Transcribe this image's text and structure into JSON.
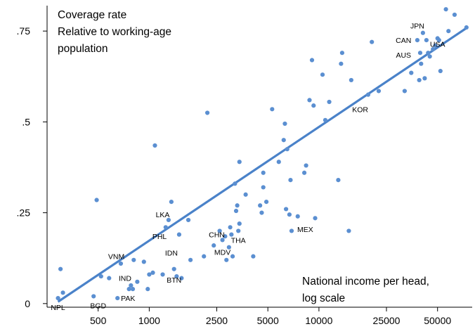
{
  "chart_data": {
    "type": "scatter",
    "title_lines": [
      "Coverage rate",
      "Relative to working-age",
      "population"
    ],
    "xlabel_lines": [
      "National income per head,",
      "log scale"
    ],
    "x_scale": "log",
    "xlim": [
      250,
      80000
    ],
    "ylim": [
      -0.01,
      0.82
    ],
    "x_ticks": [
      500,
      1000,
      2500,
      5000,
      10000,
      25000,
      50000
    ],
    "x_tick_labels": [
      "500",
      "1000",
      "2500",
      "5000",
      "10000",
      "25000",
      "50000"
    ],
    "y_ticks": [
      0,
      0.25,
      0.5,
      0.75
    ],
    "y_tick_labels": [
      "0",
      ".25",
      ".5",
      ".75"
    ],
    "grid": false,
    "point_color": "#5b8fd1",
    "fit_color": "#4a82c9",
    "fit_line": {
      "x": [
        290,
        75000
      ],
      "y": [
        0.005,
        0.76
      ]
    },
    "labels": [
      {
        "text": "NPL",
        "x": 290,
        "y": -0.01
      },
      {
        "text": "BGD",
        "x": 500,
        "y": -0.005
      },
      {
        "text": "PAK",
        "x": 750,
        "y": 0.015
      },
      {
        "text": "IND",
        "x": 720,
        "y": 0.07
      },
      {
        "text": "VNM",
        "x": 640,
        "y": 0.13
      },
      {
        "text": "BTN",
        "x": 1400,
        "y": 0.065
      },
      {
        "text": "IDN",
        "x": 1350,
        "y": 0.14
      },
      {
        "text": "PHL",
        "x": 1150,
        "y": 0.185
      },
      {
        "text": "LKA",
        "x": 1200,
        "y": 0.245
      },
      {
        "text": "CHN",
        "x": 2500,
        "y": 0.19
      },
      {
        "text": "MDV",
        "x": 2700,
        "y": 0.142
      },
      {
        "text": "THA",
        "x": 3350,
        "y": 0.175
      },
      {
        "text": "MEX",
        "x": 8300,
        "y": 0.205
      },
      {
        "text": "KOR",
        "x": 17500,
        "y": 0.535
      },
      {
        "text": "AUS",
        "x": 31500,
        "y": 0.685
      },
      {
        "text": "CAN",
        "x": 31500,
        "y": 0.725
      },
      {
        "text": "JPN",
        "x": 38000,
        "y": 0.765
      },
      {
        "text": "USA",
        "x": 50000,
        "y": 0.715
      }
    ],
    "points": [
      {
        "x": 290,
        "y": 0.015
      },
      {
        "x": 300,
        "y": 0.095
      },
      {
        "x": 310,
        "y": 0.03
      },
      {
        "x": 470,
        "y": 0.02
      },
      {
        "x": 490,
        "y": 0.285
      },
      {
        "x": 520,
        "y": 0.075
      },
      {
        "x": 580,
        "y": 0.07
      },
      {
        "x": 650,
        "y": 0.015
      },
      {
        "x": 680,
        "y": 0.11
      },
      {
        "x": 760,
        "y": 0.04
      },
      {
        "x": 780,
        "y": 0.05
      },
      {
        "x": 800,
        "y": 0.04
      },
      {
        "x": 810,
        "y": 0.12
      },
      {
        "x": 850,
        "y": 0.06
      },
      {
        "x": 930,
        "y": 0.115
      },
      {
        "x": 980,
        "y": 0.04
      },
      {
        "x": 1000,
        "y": 0.08
      },
      {
        "x": 1050,
        "y": 0.085
      },
      {
        "x": 1080,
        "y": 0.435
      },
      {
        "x": 1200,
        "y": 0.08
      },
      {
        "x": 1250,
        "y": 0.21
      },
      {
        "x": 1300,
        "y": 0.23
      },
      {
        "x": 1350,
        "y": 0.28
      },
      {
        "x": 1400,
        "y": 0.095
      },
      {
        "x": 1450,
        "y": 0.075
      },
      {
        "x": 1500,
        "y": 0.19
      },
      {
        "x": 1550,
        "y": 0.07
      },
      {
        "x": 1700,
        "y": 0.23
      },
      {
        "x": 1750,
        "y": 0.12
      },
      {
        "x": 2100,
        "y": 0.13
      },
      {
        "x": 2200,
        "y": 0.525
      },
      {
        "x": 2400,
        "y": 0.16
      },
      {
        "x": 2600,
        "y": 0.2
      },
      {
        "x": 2700,
        "y": 0.175
      },
      {
        "x": 2800,
        "y": 0.185
      },
      {
        "x": 2850,
        "y": 0.12
      },
      {
        "x": 2950,
        "y": 0.155
      },
      {
        "x": 3000,
        "y": 0.21
      },
      {
        "x": 3050,
        "y": 0.19
      },
      {
        "x": 3100,
        "y": 0.13
      },
      {
        "x": 3200,
        "y": 0.33
      },
      {
        "x": 3250,
        "y": 0.255
      },
      {
        "x": 3300,
        "y": 0.27
      },
      {
        "x": 3350,
        "y": 0.2
      },
      {
        "x": 3400,
        "y": 0.22
      },
      {
        "x": 3400,
        "y": 0.39
      },
      {
        "x": 3700,
        "y": 0.3
      },
      {
        "x": 4100,
        "y": 0.13
      },
      {
        "x": 4500,
        "y": 0.27
      },
      {
        "x": 4600,
        "y": 0.25
      },
      {
        "x": 4700,
        "y": 0.32
      },
      {
        "x": 4700,
        "y": 0.36
      },
      {
        "x": 4900,
        "y": 0.28
      },
      {
        "x": 5300,
        "y": 0.535
      },
      {
        "x": 5800,
        "y": 0.39
      },
      {
        "x": 6200,
        "y": 0.45
      },
      {
        "x": 6300,
        "y": 0.495
      },
      {
        "x": 6400,
        "y": 0.26
      },
      {
        "x": 6500,
        "y": 0.425
      },
      {
        "x": 6700,
        "y": 0.245
      },
      {
        "x": 6800,
        "y": 0.34
      },
      {
        "x": 6900,
        "y": 0.2
      },
      {
        "x": 7500,
        "y": 0.24
      },
      {
        "x": 8200,
        "y": 0.36
      },
      {
        "x": 8400,
        "y": 0.38
      },
      {
        "x": 8800,
        "y": 0.56
      },
      {
        "x": 9100,
        "y": 0.67
      },
      {
        "x": 9300,
        "y": 0.545
      },
      {
        "x": 9500,
        "y": 0.235
      },
      {
        "x": 10500,
        "y": 0.63
      },
      {
        "x": 10900,
        "y": 0.505
      },
      {
        "x": 11500,
        "y": 0.555
      },
      {
        "x": 13000,
        "y": 0.34
      },
      {
        "x": 13500,
        "y": 0.66
      },
      {
        "x": 13700,
        "y": 0.69
      },
      {
        "x": 15000,
        "y": 0.2
      },
      {
        "x": 15500,
        "y": 0.615
      },
      {
        "x": 19500,
        "y": 0.575
      },
      {
        "x": 20500,
        "y": 0.72
      },
      {
        "x": 22500,
        "y": 0.585
      },
      {
        "x": 32000,
        "y": 0.585
      },
      {
        "x": 35000,
        "y": 0.635
      },
      {
        "x": 38000,
        "y": 0.725
      },
      {
        "x": 39000,
        "y": 0.615
      },
      {
        "x": 39500,
        "y": 0.69
      },
      {
        "x": 40000,
        "y": 0.66
      },
      {
        "x": 41000,
        "y": 0.745
      },
      {
        "x": 42000,
        "y": 0.62
      },
      {
        "x": 43000,
        "y": 0.725
      },
      {
        "x": 44000,
        "y": 0.69
      },
      {
        "x": 45000,
        "y": 0.68
      },
      {
        "x": 47000,
        "y": 0.7
      },
      {
        "x": 48500,
        "y": 0.71
      },
      {
        "x": 50000,
        "y": 0.73
      },
      {
        "x": 51000,
        "y": 0.725
      },
      {
        "x": 52000,
        "y": 0.64
      },
      {
        "x": 56000,
        "y": 0.81
      },
      {
        "x": 58000,
        "y": 0.75
      },
      {
        "x": 63000,
        "y": 0.795
      },
      {
        "x": 74000,
        "y": 0.76
      }
    ]
  }
}
